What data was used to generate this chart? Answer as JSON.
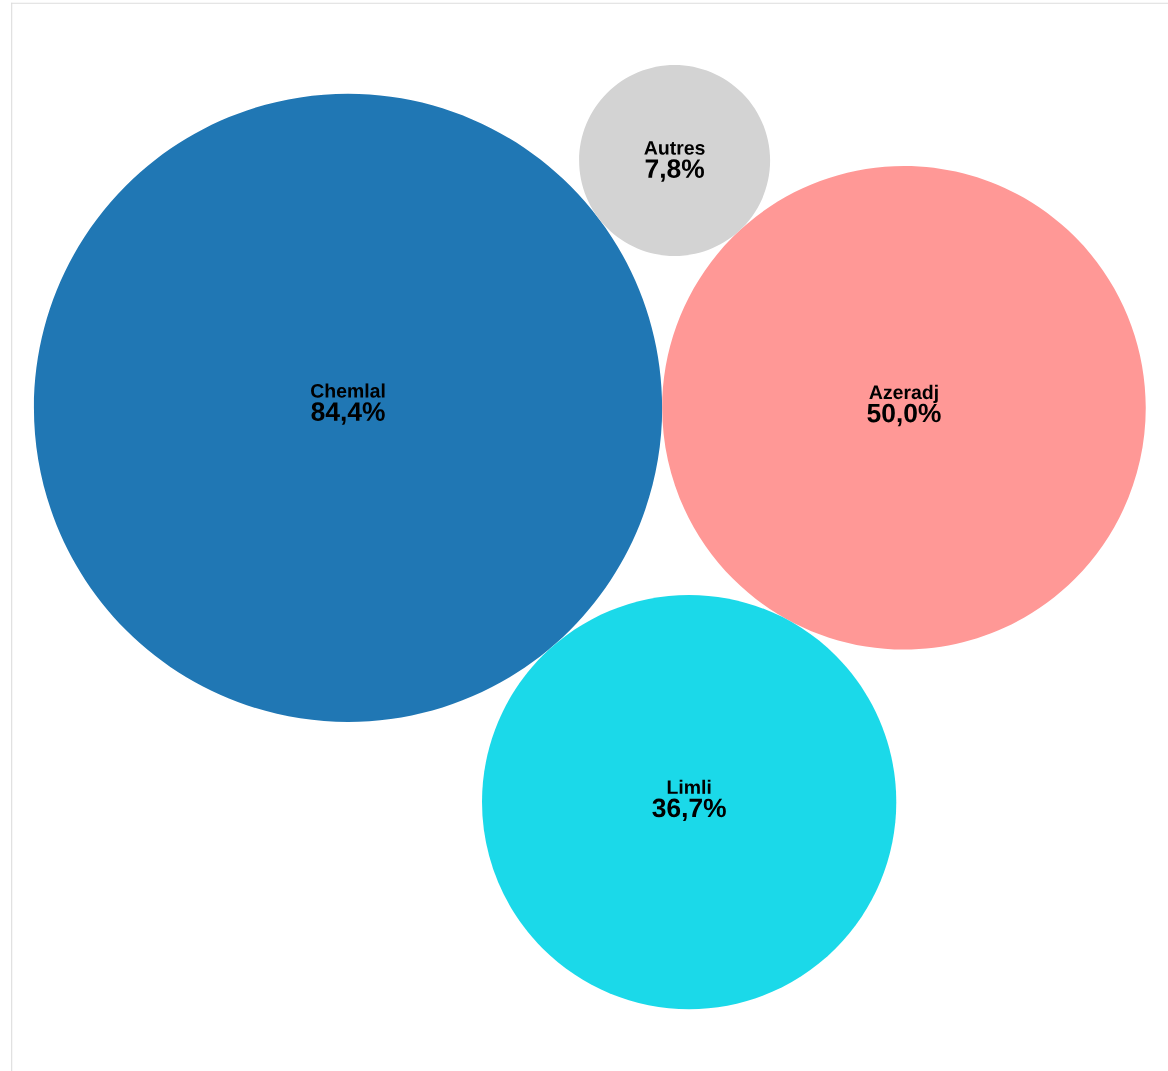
{
  "chart_data": {
    "type": "other",
    "categories": [
      "Chemlal",
      "Azeradj",
      "Limli",
      "Autres"
    ],
    "values": [
      84.4,
      50.0,
      36.7,
      7.8
    ],
    "value_labels": [
      "84,4%",
      "50,0%",
      "36,7%",
      "7,8%"
    ],
    "colors": [
      "#2077b4",
      "#ff9896",
      "#1bd9e9",
      "#d3d3d3"
    ]
  }
}
